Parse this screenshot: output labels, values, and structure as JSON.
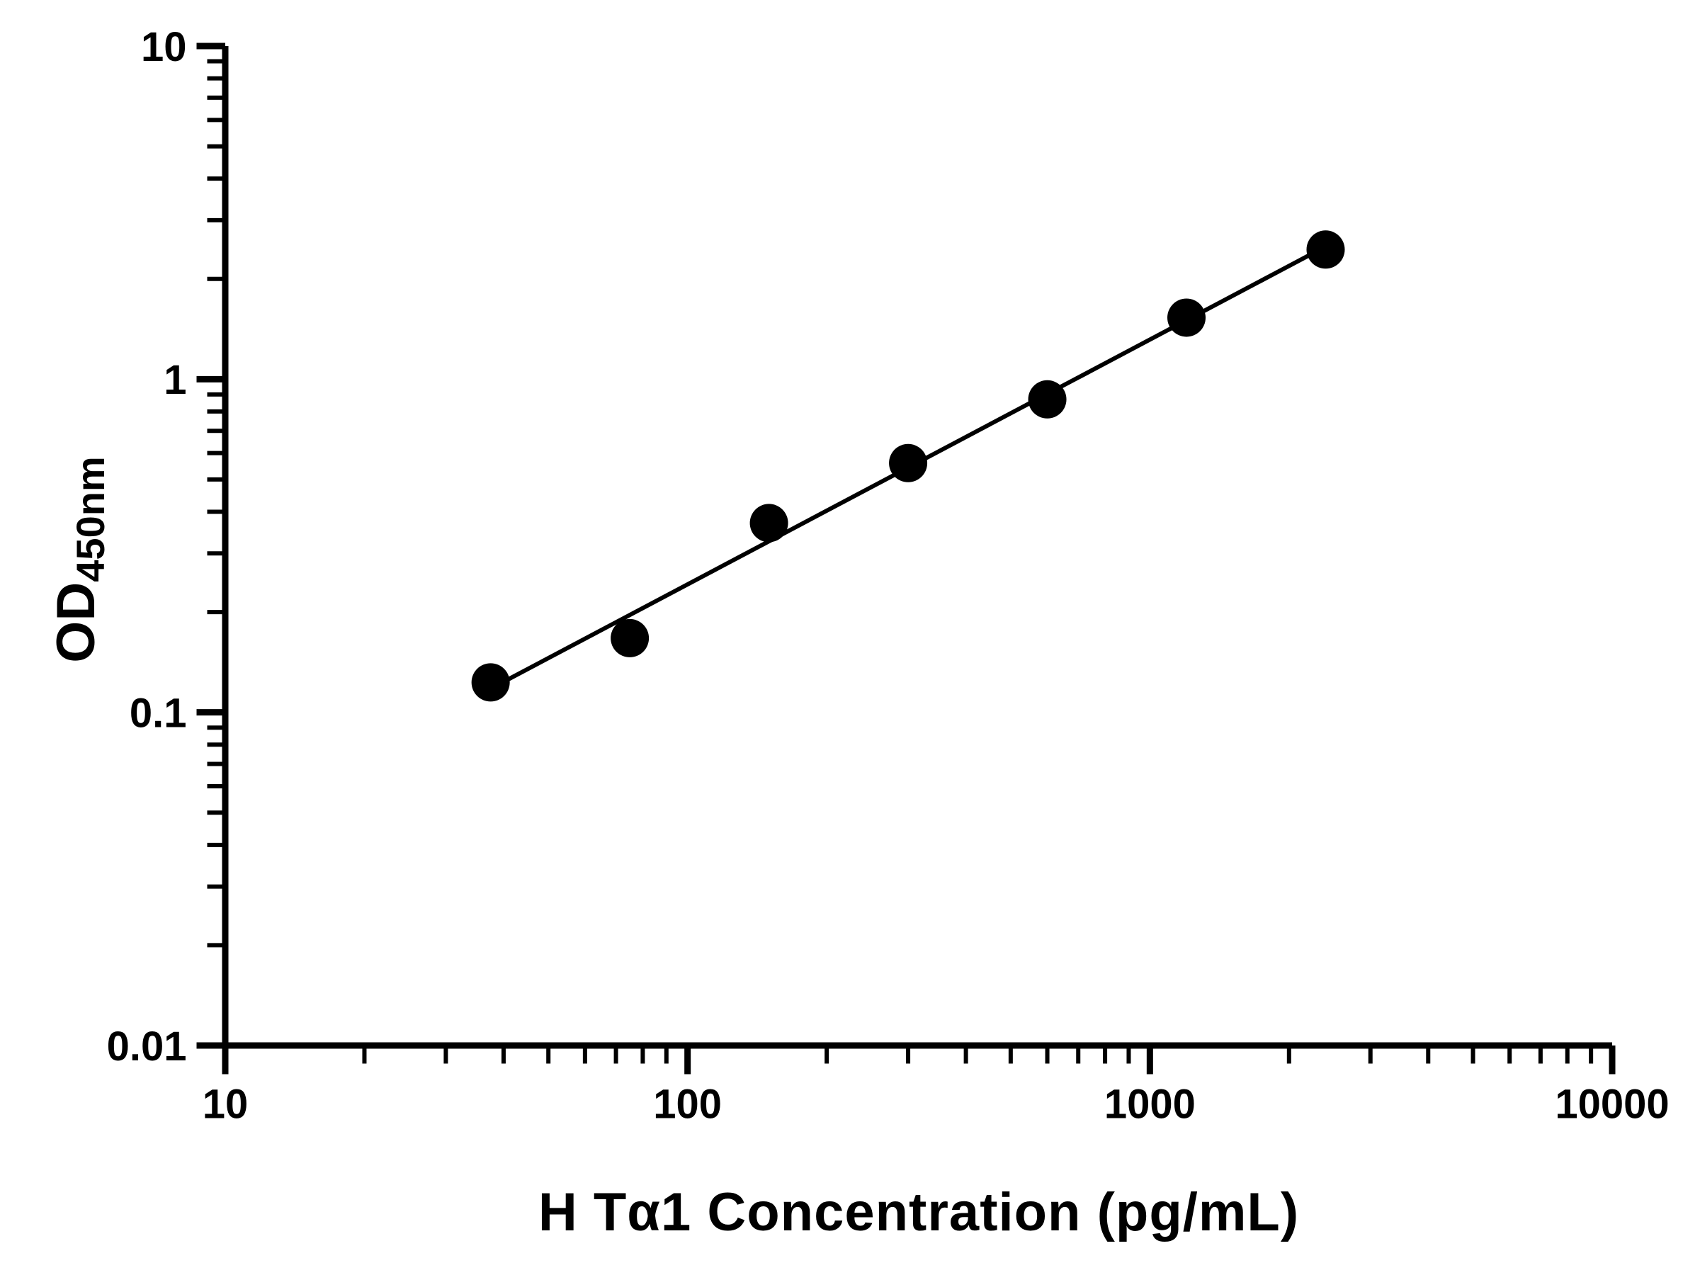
{
  "chart_data": {
    "type": "scatter",
    "title": "",
    "xlabel": "H Tα1 Concentration (pg/mL)",
    "ylabel_main": "OD",
    "ylabel_sub": "450nm",
    "x_scale": "log",
    "y_scale": "log",
    "xlim": [
      10,
      10000
    ],
    "ylim": [
      0.01,
      10
    ],
    "x": [
      37.5,
      75,
      150,
      300,
      600,
      1200,
      2400
    ],
    "y": [
      0.123,
      0.167,
      0.37,
      0.56,
      0.87,
      1.53,
      2.45
    ],
    "x_ticks": [
      {
        "value": 10,
        "label": "10"
      },
      {
        "value": 100,
        "label": "100"
      },
      {
        "value": 1000,
        "label": "1000"
      },
      {
        "value": 10000,
        "label": "10000"
      }
    ],
    "y_ticks": [
      {
        "value": 0.01,
        "label": "0.01"
      },
      {
        "value": 0.1,
        "label": "0.1"
      },
      {
        "value": 1,
        "label": "1"
      },
      {
        "value": 10,
        "label": "10"
      }
    ],
    "trendline": true,
    "legend": "none",
    "grid": "off",
    "marker_color": "#000000",
    "line_color": "#000000",
    "axis_color": "#000000",
    "background": "#ffffff"
  }
}
